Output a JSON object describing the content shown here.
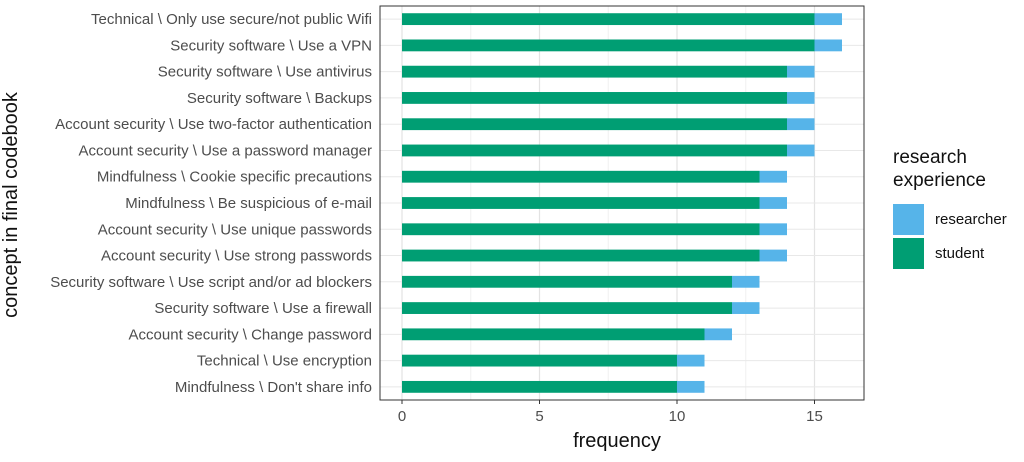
{
  "chart_data": {
    "type": "bar",
    "orientation": "horizontal",
    "stacked": true,
    "xlabel": "frequency",
    "ylabel": "concept in final codebook",
    "xlim": [
      -0.8,
      16.8
    ],
    "xticks": [
      0,
      5,
      10,
      15
    ],
    "grid": true,
    "legend_position": "right",
    "categories": [
      "Technical \\ Only use secure/not public Wifi",
      "Security software \\ Use a VPN",
      "Security software \\ Use antivirus",
      "Security software \\ Backups",
      "Account security \\ Use two-factor authentication",
      "Account security \\ Use a password manager",
      "Mindfulness \\ Cookie specific precautions",
      "Mindfulness \\ Be suspicious of e-mail",
      "Account security \\ Use unique passwords",
      "Account security \\ Use strong passwords",
      "Security software \\ Use script and/or ad blockers",
      "Security software \\ Use a firewall",
      "Account security \\ Change password",
      "Technical \\ Use encryption",
      "Mindfulness \\ Don't share info"
    ],
    "series": [
      {
        "name": "student",
        "color": "#009E73",
        "values": [
          15,
          15,
          14,
          14,
          14,
          14,
          13,
          13,
          13,
          13,
          12,
          12,
          11,
          10,
          10
        ]
      },
      {
        "name": "researcher",
        "color": "#56B4E9",
        "values": [
          1,
          1,
          1,
          1,
          1,
          1,
          1,
          1,
          1,
          1,
          1,
          1,
          1,
          1,
          1
        ]
      }
    ]
  },
  "legend": {
    "title_line1": "research",
    "title_line2": "experience",
    "items": [
      {
        "label": "researcher",
        "color": "#56B4E9"
      },
      {
        "label": "student",
        "color": "#009E73"
      }
    ]
  }
}
